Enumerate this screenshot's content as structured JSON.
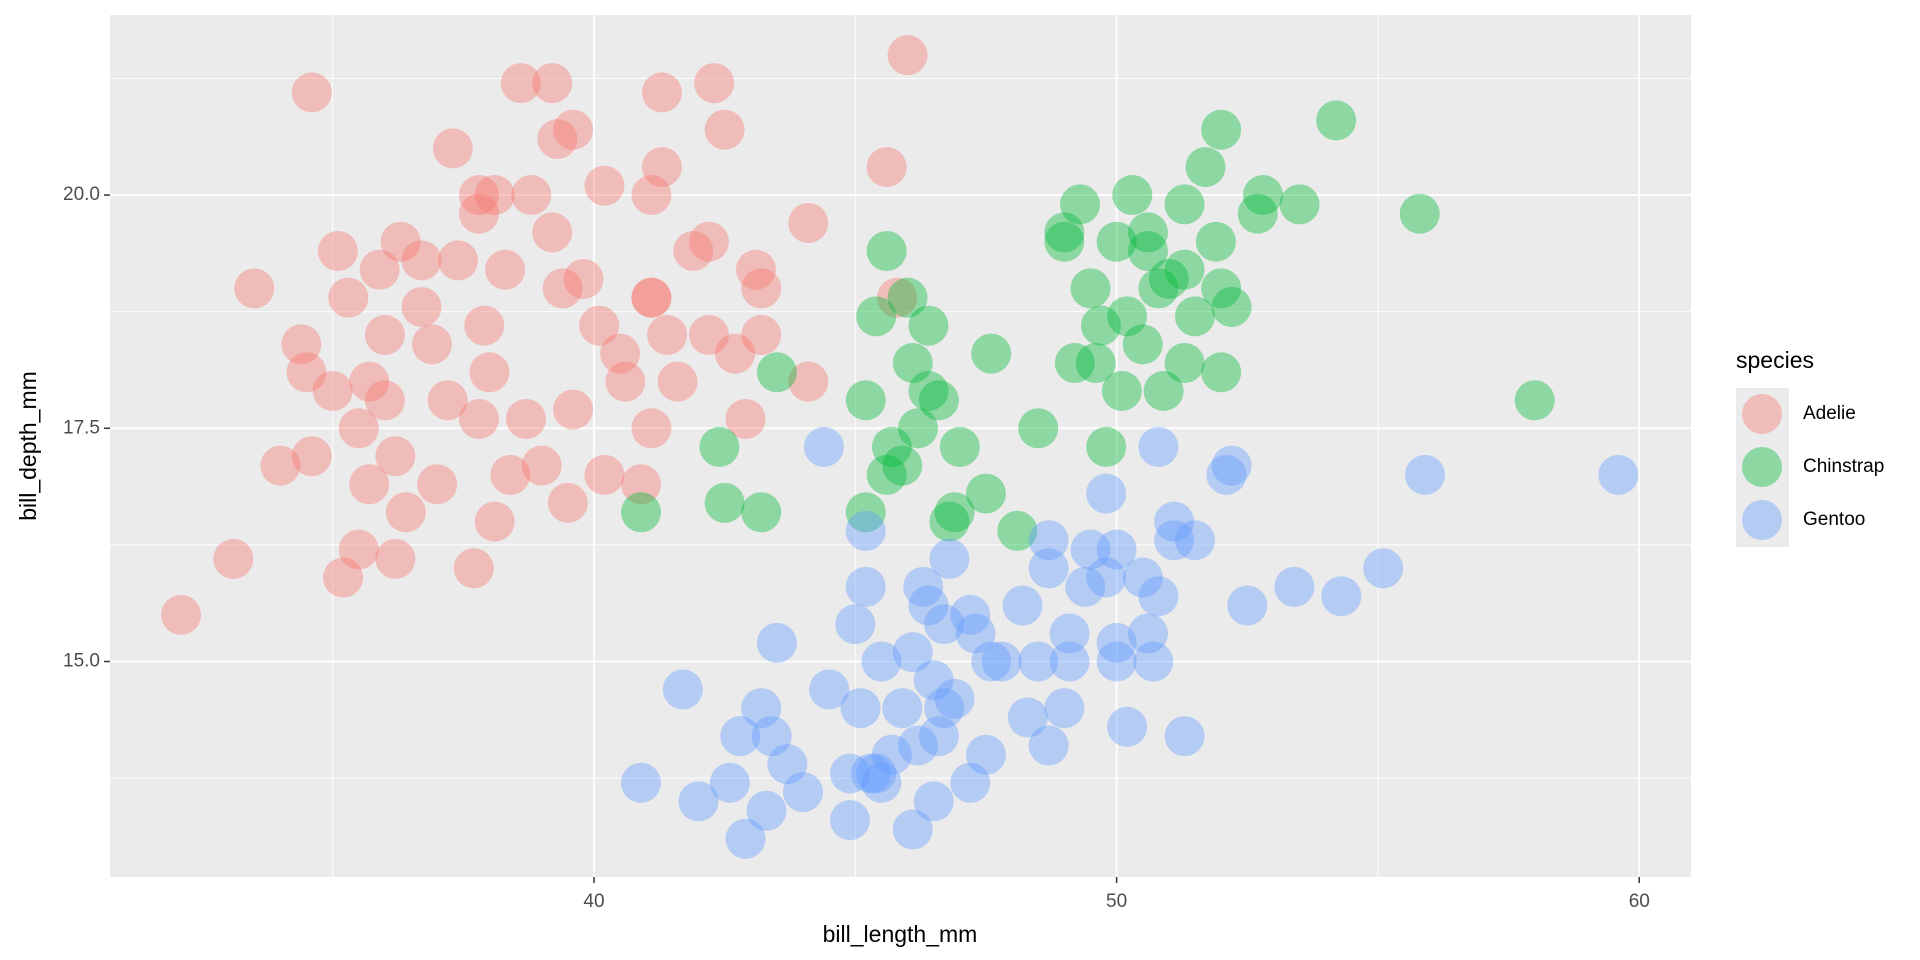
{
  "chart_data": {
    "type": "scatter",
    "x_label": "bill_length_mm",
    "y_label": "bill_depth_mm",
    "legend_title": "species",
    "xlim": [
      30.74,
      60.99
    ],
    "ylim": [
      12.69,
      21.93
    ],
    "xticks": [
      40,
      50,
      60
    ],
    "yticks": [
      {
        "value": 15,
        "label": "15.0"
      },
      {
        "value": 17.5,
        "label": "17.5"
      },
      {
        "value": 20,
        "label": "20.0"
      }
    ],
    "x_minor_grid": [
      35,
      45,
      55
    ],
    "y_minor_grid": [
      13.75,
      16.25,
      18.75,
      21.25
    ],
    "grid": true,
    "legend_position": "right",
    "point_opacity": 0.4,
    "series": [
      {
        "name": "Adelie",
        "color": "#F8766D",
        "x": [
          32.1,
          33.1,
          33.5,
          34.6,
          34.4,
          34.5,
          34.0,
          34.6,
          35.0,
          35.1,
          35.3,
          35.5,
          35.5,
          35.2,
          35.7,
          35.7,
          35.9,
          36.0,
          36.0,
          36.2,
          36.2,
          36.3,
          36.4,
          36.7,
          36.7,
          36.9,
          37.0,
          37.2,
          37.3,
          37.4,
          37.7,
          37.8,
          37.8,
          37.9,
          38.0,
          38.1,
          38.1,
          38.3,
          38.4,
          38.6,
          38.8,
          39.2,
          39.2,
          39.3,
          39.4,
          39.5,
          39.6,
          39.8,
          39.6,
          40.2,
          40.2,
          40.6,
          40.9,
          41.1,
          41.1,
          41.1,
          41.3,
          41.3,
          41.1,
          41.4,
          41.6,
          41.9,
          42.2,
          42.3,
          42.5,
          42.2,
          42.7,
          42.9,
          43.1,
          43.2,
          43.2,
          44.1,
          44.1,
          45.6,
          45.8,
          46.0,
          37.8,
          38.7,
          39.0,
          40.1,
          40.5
        ],
        "y": [
          15.5,
          16.1,
          19.0,
          21.1,
          18.4,
          18.1,
          17.1,
          17.2,
          17.9,
          19.4,
          18.9,
          17.5,
          16.2,
          15.9,
          16.9,
          18.0,
          19.2,
          18.5,
          17.8,
          16.1,
          17.2,
          19.5,
          16.6,
          19.3,
          18.8,
          18.4,
          16.9,
          17.8,
          20.5,
          19.3,
          16.0,
          19.8,
          20.0,
          18.6,
          18.1,
          16.5,
          20.0,
          19.2,
          17.0,
          21.2,
          20.0,
          21.2,
          19.6,
          20.6,
          19.0,
          16.7,
          20.7,
          19.1,
          17.7,
          20.1,
          17.0,
          18.0,
          16.9,
          18.9,
          20.0,
          18.9,
          21.1,
          20.3,
          17.5,
          18.5,
          18.0,
          19.4,
          19.5,
          21.2,
          20.7,
          18.5,
          18.3,
          17.6,
          19.2,
          19.0,
          18.5,
          19.7,
          18.0,
          20.3,
          18.9,
          21.5,
          17.6,
          17.6,
          17.1,
          18.6,
          18.3
        ]
      },
      {
        "name": "Chinstrap",
        "color": "#00BA38",
        "x": [
          40.9,
          42.4,
          42.5,
          43.2,
          43.5,
          45.2,
          45.2,
          45.4,
          45.6,
          45.7,
          45.6,
          45.9,
          46.0,
          46.1,
          46.2,
          46.4,
          46.4,
          46.6,
          46.8,
          46.9,
          47.0,
          47.5,
          47.6,
          48.1,
          48.5,
          49.0,
          49.0,
          49.3,
          49.2,
          49.5,
          49.6,
          49.7,
          49.8,
          50.0,
          50.1,
          50.2,
          50.3,
          50.5,
          50.6,
          50.6,
          50.8,
          50.9,
          51.0,
          51.3,
          51.3,
          51.3,
          51.5,
          51.7,
          51.9,
          52.0,
          52.0,
          52.0,
          52.2,
          52.7,
          52.8,
          53.5,
          54.2,
          55.8,
          58.0
        ],
        "y": [
          16.6,
          17.3,
          16.7,
          16.6,
          18.1,
          17.8,
          16.6,
          18.7,
          19.4,
          17.3,
          17.0,
          17.1,
          18.9,
          18.2,
          17.5,
          18.6,
          17.9,
          17.8,
          16.5,
          16.6,
          17.3,
          16.8,
          18.3,
          16.4,
          17.5,
          19.5,
          19.6,
          19.9,
          18.2,
          19.0,
          18.2,
          18.6,
          17.3,
          19.5,
          17.9,
          18.7,
          20.0,
          18.4,
          19.6,
          19.4,
          19.0,
          17.9,
          19.1,
          19.9,
          18.2,
          19.2,
          18.7,
          20.3,
          19.5,
          20.7,
          19.0,
          18.1,
          18.8,
          19.8,
          20.0,
          19.9,
          20.8,
          19.8,
          17.8
        ]
      },
      {
        "name": "Gentoo",
        "color": "#619CFF",
        "x": [
          40.9,
          41.7,
          42.0,
          42.6,
          42.8,
          42.9,
          43.2,
          43.3,
          43.4,
          43.5,
          43.7,
          44.0,
          44.4,
          44.5,
          44.9,
          44.9,
          45.0,
          45.1,
          45.2,
          45.2,
          45.3,
          45.4,
          45.5,
          45.5,
          45.7,
          45.9,
          46.1,
          46.1,
          46.2,
          46.3,
          46.4,
          46.5,
          46.5,
          46.6,
          46.7,
          46.7,
          46.8,
          46.9,
          47.2,
          47.2,
          47.3,
          47.5,
          47.6,
          47.8,
          48.2,
          48.3,
          48.5,
          48.7,
          48.7,
          48.7,
          49.0,
          49.1,
          49.1,
          49.4,
          49.5,
          49.8,
          49.8,
          50.0,
          50.0,
          50.0,
          50.2,
          50.5,
          50.6,
          50.7,
          50.8,
          50.8,
          51.1,
          51.1,
          51.3,
          51.5,
          52.1,
          52.2,
          52.5,
          53.4,
          54.3,
          55.1,
          55.9,
          59.6
        ],
        "y": [
          13.7,
          14.7,
          13.5,
          13.7,
          14.2,
          13.1,
          14.5,
          13.4,
          14.2,
          15.2,
          13.9,
          13.6,
          17.3,
          14.7,
          13.3,
          13.8,
          15.4,
          14.5,
          16.4,
          15.8,
          13.8,
          13.8,
          15.0,
          13.7,
          14.0,
          14.5,
          13.2,
          15.1,
          14.1,
          15.8,
          15.6,
          13.5,
          14.8,
          14.2,
          14.5,
          15.4,
          16.1,
          14.6,
          13.7,
          15.5,
          15.3,
          14.0,
          15.0,
          15.0,
          15.6,
          14.4,
          15.0,
          16.3,
          14.1,
          16.0,
          14.5,
          15.0,
          15.3,
          15.8,
          16.2,
          16.8,
          15.9,
          16.2,
          15.0,
          15.2,
          14.3,
          15.9,
          15.3,
          15.0,
          17.3,
          15.7,
          16.5,
          16.3,
          14.2,
          16.3,
          17.0,
          17.1,
          15.6,
          15.8,
          15.7,
          16.0,
          17.0,
          17.0
        ]
      }
    ]
  }
}
